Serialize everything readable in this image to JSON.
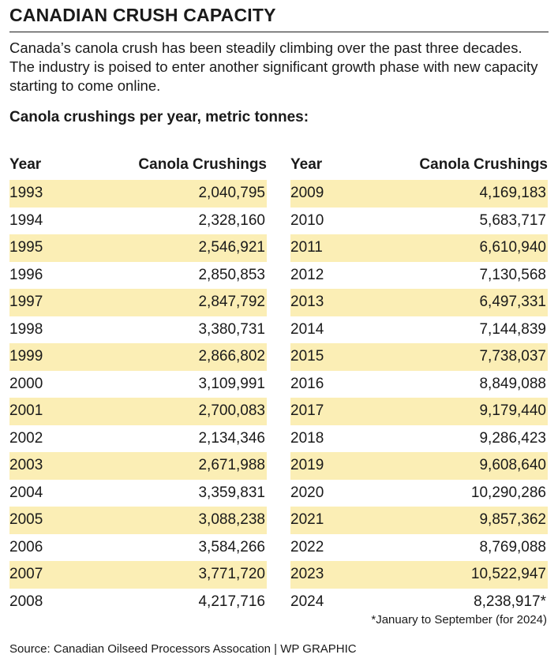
{
  "title": "CANADIAN CRUSH CAPACITY",
  "intro": "Canada’s canola crush has been steadily climbing over the past three decades. The industry is poised to enter another significant growth phase with new capacity starting to come online.",
  "subhead": "Canola crushings per year, metric tonnes:",
  "footnote": "*January to September (for 2024)",
  "source": "Source: Canadian Oilseed Processors Assocation  |  WP GRAPHIC",
  "colors": {
    "shade": "#fbeeb5",
    "text": "#1a1a1a"
  },
  "chart_data": {
    "type": "table",
    "columns": [
      "Year",
      "Canola Crushings"
    ],
    "rows": [
      [
        "1993",
        "2,040,795"
      ],
      [
        "1994",
        "2,328,160"
      ],
      [
        "1995",
        "2,546,921"
      ],
      [
        "1996",
        "2,850,853"
      ],
      [
        "1997",
        "2,847,792"
      ],
      [
        "1998",
        "3,380,731"
      ],
      [
        "1999",
        "2,866,802"
      ],
      [
        "2000",
        "3,109,991"
      ],
      [
        "2001",
        "2,700,083"
      ],
      [
        "2002",
        "2,134,346"
      ],
      [
        "2003",
        "2,671,988"
      ],
      [
        "2004",
        "3,359,831"
      ],
      [
        "2005",
        "3,088,238"
      ],
      [
        "2006",
        "3,584,266"
      ],
      [
        "2007",
        "3,771,720"
      ],
      [
        "2008",
        "4,217,716"
      ],
      [
        "2009",
        "4,169,183"
      ],
      [
        "2010",
        "5,683,717"
      ],
      [
        "2011",
        "6,610,940"
      ],
      [
        "2012",
        "7,130,568"
      ],
      [
        "2013",
        "6,497,331"
      ],
      [
        "2014",
        "7,144,839"
      ],
      [
        "2015",
        "7,738,037"
      ],
      [
        "2016",
        "8,849,088"
      ],
      [
        "2017",
        "9,179,440"
      ],
      [
        "2018",
        "9,286,423"
      ],
      [
        "2019",
        "9,608,640"
      ],
      [
        "2020",
        "10,290,286"
      ],
      [
        "2021",
        "9,857,362"
      ],
      [
        "2022",
        "8,769,088"
      ],
      [
        "2023",
        "10,522,947"
      ],
      [
        "2024",
        "8,238,917*"
      ]
    ]
  }
}
